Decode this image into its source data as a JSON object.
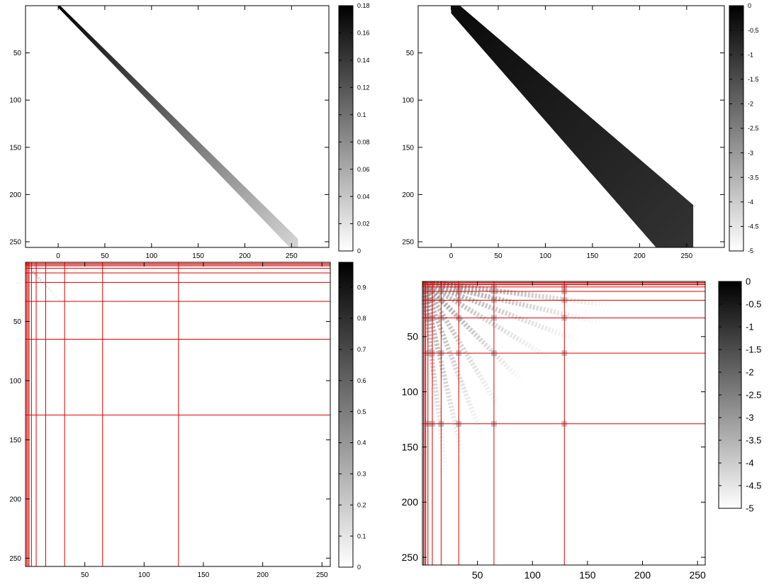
{
  "chart_data": [
    {
      "type": "heatmap",
      "pattern": "band",
      "xlim": [
        -35,
        290
      ],
      "ylim": [
        0,
        256
      ],
      "x_ticks": [
        0,
        50,
        100,
        150,
        200,
        250
      ],
      "y_ticks": [
        50,
        100,
        150,
        200,
        250
      ],
      "colorbar": {
        "min": 0,
        "max": 0.18,
        "ticks": [
          0,
          0.02,
          0.04,
          0.06,
          0.08,
          0.1,
          0.12,
          0.14,
          0.16,
          0.18
        ]
      },
      "band": {
        "x_start": 0,
        "x_end": 257,
        "y_start": 0,
        "y_end": 256,
        "slope": 1.0,
        "half_width_start": 2,
        "half_width_end": 9,
        "value_start": 0.18,
        "value_end": 0.03
      },
      "grid_lines": [],
      "colormap": "gray-reversed"
    },
    {
      "type": "heatmap",
      "pattern": "band",
      "xlim": [
        -35,
        290
      ],
      "ylim": [
        0,
        256
      ],
      "x_ticks": [
        0,
        50,
        100,
        150,
        200,
        250
      ],
      "y_ticks": [
        50,
        100,
        150,
        200,
        250
      ],
      "colorbar": {
        "min": -5,
        "max": 0,
        "ticks": [
          0,
          -0.5,
          -1,
          -1.5,
          -2,
          -2.5,
          -3,
          -3.5,
          -4,
          -4.5,
          -5
        ]
      },
      "band": {
        "x_start": 0,
        "x_end": 257,
        "y_start": 0,
        "y_end": 256,
        "slope": 1.0,
        "half_width_start": 8,
        "half_width_end": 45,
        "value_start": -0.2,
        "value_end": -1.0
      },
      "grid_lines": [],
      "colormap": "gray-reversed"
    },
    {
      "type": "heatmap",
      "pattern": "hierarchical",
      "xlim": [
        0,
        257
      ],
      "ylim": [
        0,
        257
      ],
      "x_ticks": [
        50,
        100,
        150,
        200,
        250
      ],
      "y_ticks": [
        50,
        100,
        150,
        200,
        250
      ],
      "colorbar": {
        "min": 0,
        "max": 0.98,
        "ticks": [
          0,
          0.1,
          0.2,
          0.3,
          0.4,
          0.5,
          0.6,
          0.7,
          0.8,
          0.9
        ]
      },
      "grid_lines": [
        1,
        2,
        3,
        5,
        9,
        17,
        33,
        65,
        129
      ],
      "rays": [
        {
          "to_x": 18,
          "to_y": 22,
          "value": 0.5
        },
        {
          "to_x": 40,
          "to_y": 45,
          "value": 0.15
        }
      ],
      "colormap": "gray-reversed"
    },
    {
      "type": "heatmap",
      "pattern": "hierarchical",
      "xlim": [
        0,
        257
      ],
      "ylim": [
        0,
        257
      ],
      "x_ticks": [
        50,
        100,
        150,
        200,
        250
      ],
      "y_ticks": [
        50,
        100,
        150,
        200,
        250
      ],
      "colorbar": {
        "min": -5,
        "max": 0,
        "ticks": [
          0,
          -0.5,
          -1,
          -1.5,
          -2,
          -2.5,
          -3,
          -3.5,
          -4,
          -4.5,
          -5
        ]
      },
      "grid_lines": [
        1,
        2,
        3,
        5,
        9,
        17,
        33,
        65,
        129
      ],
      "rays": [
        {
          "to_x": 175,
          "to_y": 22,
          "value": -2.8
        },
        {
          "to_x": 165,
          "to_y": 38,
          "value": -3.0
        },
        {
          "to_x": 145,
          "to_y": 55,
          "value": -3.2
        },
        {
          "to_x": 120,
          "to_y": 72,
          "value": -3.4
        },
        {
          "to_x": 92,
          "to_y": 92,
          "value": -3.0
        },
        {
          "to_x": 72,
          "to_y": 118,
          "value": -3.4
        },
        {
          "to_x": 55,
          "to_y": 142,
          "value": -3.3
        },
        {
          "to_x": 38,
          "to_y": 165,
          "value": -3.2
        },
        {
          "to_x": 22,
          "to_y": 178,
          "value": -3.4
        }
      ],
      "colormap": "gray-reversed"
    }
  ]
}
